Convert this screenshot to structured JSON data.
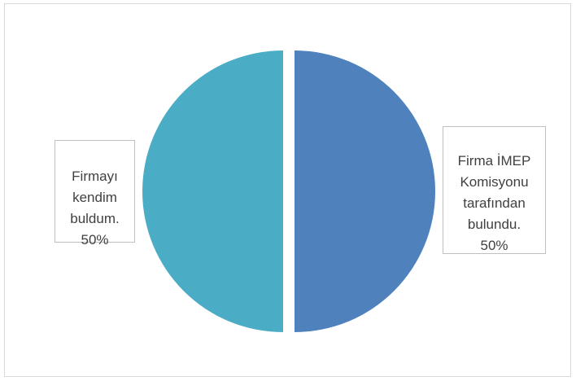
{
  "chart_data": {
    "type": "pie",
    "slices": [
      {
        "label": "Firma İMEP Komisyonu tarafından bulundu.",
        "value": 50,
        "color": "#4f81bd",
        "label_lines": [
          "Firma İMEP",
          "Komisyonu",
          "tarafından",
          "bulundu.",
          "50%"
        ]
      },
      {
        "label": "Firmayı kendim buldum.",
        "value": 50,
        "color": "#4bacc6",
        "label_lines": [
          "Firmayı",
          "kendim",
          "buldum.",
          "50%"
        ]
      }
    ],
    "legend": "none"
  }
}
